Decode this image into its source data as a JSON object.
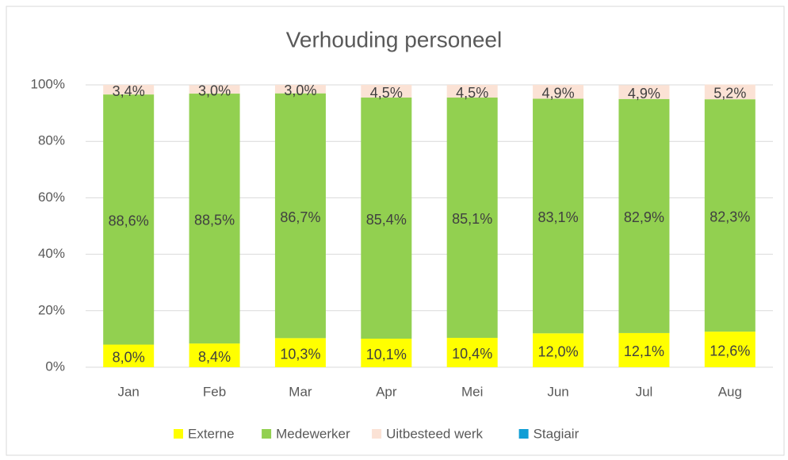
{
  "chart_data": {
    "type": "stacked_bar",
    "title": "Verhouding personeel",
    "categories": [
      "Jan",
      "Feb",
      "Mar",
      "Apr",
      "Mei",
      "Jun",
      "Jul",
      "Aug"
    ],
    "series": [
      {
        "name": "Externe",
        "color": "#ffff00",
        "values": [
          8.0,
          8.4,
          10.3,
          10.1,
          10.4,
          12.0,
          12.1,
          12.6
        ],
        "value_labels": [
          "8,0%",
          "8,4%",
          "10,3%",
          "10,1%",
          "10,4%",
          "12,0%",
          "12,1%",
          "12,6%"
        ]
      },
      {
        "name": "Medewerker",
        "color": "#92d050",
        "values": [
          88.6,
          88.5,
          86.7,
          85.4,
          85.1,
          83.1,
          82.9,
          82.3
        ],
        "value_labels": [
          "88,6%",
          "88,5%",
          "86,7%",
          "85,4%",
          "85,1%",
          "83,1%",
          "82,9%",
          "82,3%"
        ]
      },
      {
        "name": "Uitbesteed werk",
        "color": "#fbe2d5",
        "values": [
          3.4,
          3.0,
          3.0,
          4.5,
          4.5,
          4.9,
          4.9,
          5.2
        ],
        "value_labels": [
          "3,4%",
          "3,0%",
          "3,0%",
          "4,5%",
          "4,5%",
          "4,9%",
          "4,9%",
          "5,2%"
        ]
      },
      {
        "name": "Stagiair",
        "color": "#0f9ed5",
        "values": [
          0,
          0,
          0,
          0,
          0,
          0,
          0,
          0
        ]
      }
    ],
    "ylim": [
      0,
      100
    ],
    "yticks": [
      {
        "value": 0,
        "label": "0%"
      },
      {
        "value": 20,
        "label": "20%"
      },
      {
        "value": 40,
        "label": "40%"
      },
      {
        "value": 60,
        "label": "60%"
      },
      {
        "value": 80,
        "label": "80%"
      },
      {
        "value": 100,
        "label": "100%"
      }
    ],
    "grid": true,
    "legend": "bottom"
  }
}
